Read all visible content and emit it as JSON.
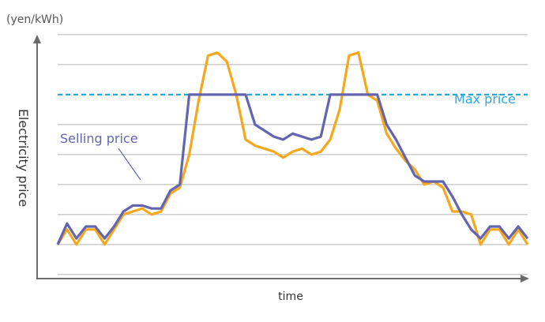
{
  "chart_data": {
    "type": "line",
    "title": "",
    "xlabel": "time",
    "ylabel": "Electricity price",
    "unit": "(yen/kWh)",
    "grid": true,
    "tick_labels": false,
    "max_line": {
      "name": "Max price",
      "value": 6.0,
      "color": "#2aa8e0"
    },
    "series": [
      {
        "name": "",
        "color": "#f5a81c",
        "x": [
          0,
          0.05,
          0.1,
          0.15,
          0.2,
          0.25,
          0.3,
          0.35,
          0.4,
          0.45,
          0.5,
          0.55,
          0.6,
          0.65,
          0.7,
          0.75,
          0.8,
          0.85,
          0.9,
          0.95,
          1.0,
          1.05,
          1.1,
          1.15,
          1.2,
          1.25,
          1.3,
          1.35,
          1.4,
          1.45,
          1.5,
          1.55,
          1.6,
          1.65,
          1.7,
          1.75,
          1.8,
          1.85,
          1.9,
          1.95,
          2.0,
          2.05,
          2.1,
          2.15,
          2.2,
          2.25,
          2.3,
          2.35,
          2.4,
          2.45,
          2.5
        ],
        "values": [
          1.0,
          1.5,
          1.0,
          1.5,
          1.5,
          1.0,
          1.5,
          2.0,
          2.1,
          2.2,
          2.0,
          2.1,
          2.7,
          2.9,
          4.0,
          5.8,
          7.3,
          7.4,
          7.1,
          6.0,
          4.5,
          4.3,
          4.2,
          4.1,
          3.9,
          4.1,
          4.2,
          4.0,
          4.1,
          4.5,
          5.5,
          7.3,
          7.4,
          6.0,
          5.8,
          4.7,
          4.2,
          3.8,
          3.5,
          3.0,
          3.1,
          2.9,
          2.1,
          2.1,
          2.0,
          1.0,
          1.5,
          1.5,
          1.0,
          1.5,
          1.0
        ]
      },
      {
        "name": "Selling price",
        "color": "#6464b0",
        "x": [
          0,
          0.05,
          0.1,
          0.15,
          0.2,
          0.25,
          0.3,
          0.35,
          0.4,
          0.45,
          0.5,
          0.55,
          0.6,
          0.65,
          0.7,
          0.75,
          0.8,
          0.85,
          0.9,
          0.95,
          1.0,
          1.05,
          1.1,
          1.15,
          1.2,
          1.25,
          1.3,
          1.35,
          1.4,
          1.45,
          1.5,
          1.55,
          1.6,
          1.65,
          1.7,
          1.75,
          1.8,
          1.85,
          1.9,
          1.95,
          2.0,
          2.05,
          2.1,
          2.15,
          2.2,
          2.25,
          2.3,
          2.35,
          2.4,
          2.45,
          2.5
        ],
        "values": [
          1.0,
          1.7,
          1.2,
          1.6,
          1.6,
          1.2,
          1.6,
          2.1,
          2.3,
          2.3,
          2.2,
          2.2,
          2.8,
          3.0,
          6.0,
          6.0,
          6.0,
          6.0,
          6.0,
          6.0,
          6.0,
          5.0,
          4.8,
          4.6,
          4.5,
          4.7,
          4.6,
          4.5,
          4.6,
          6.0,
          6.0,
          6.0,
          6.0,
          6.0,
          6.0,
          5.0,
          4.5,
          3.9,
          3.3,
          3.1,
          3.1,
          3.1,
          2.6,
          2.0,
          1.5,
          1.2,
          1.6,
          1.6,
          1.2,
          1.6,
          1.2
        ]
      }
    ],
    "xlim": [
      0,
      2.5
    ],
    "ylim": [
      -1,
      8.5
    ]
  }
}
